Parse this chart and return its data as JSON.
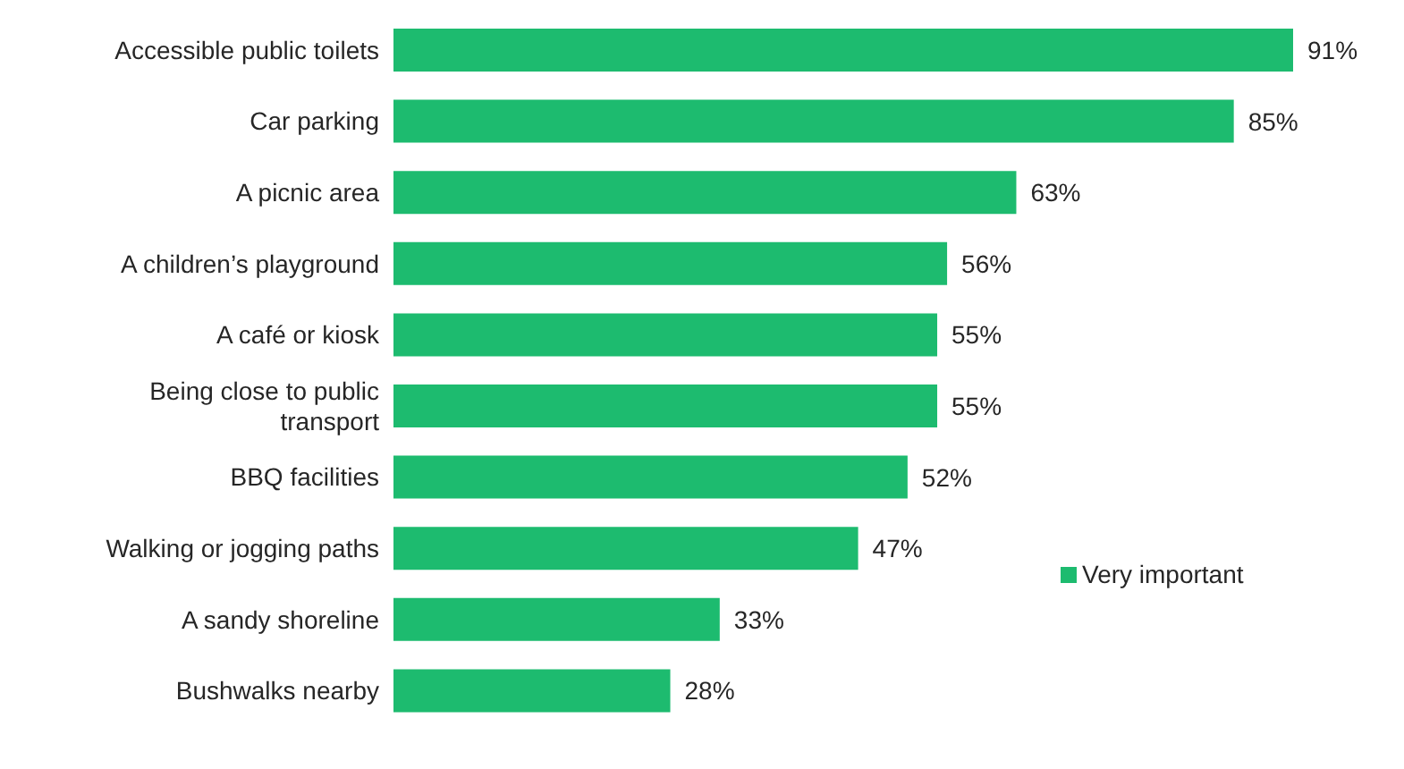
{
  "chart_data": {
    "type": "bar",
    "orientation": "horizontal",
    "categories": [
      "Accessible public toilets",
      "Car parking",
      "A picnic area",
      "A children’s playground",
      "A café or kiosk",
      "Being close to public transport",
      "BBQ facilities",
      "Walking or jogging paths",
      "A sandy shoreline",
      "Bushwalks nearby"
    ],
    "series": [
      {
        "name": "Very important",
        "color": "#1dbb6f",
        "values": [
          91,
          85,
          63,
          56,
          55,
          55,
          52,
          47,
          33,
          28
        ],
        "value_labels": [
          "91%",
          "85%",
          "63%",
          "56%",
          "55%",
          "55%",
          "52%",
          "47%",
          "33%",
          "28%"
        ]
      }
    ],
    "legend": "right",
    "grid": false
  }
}
